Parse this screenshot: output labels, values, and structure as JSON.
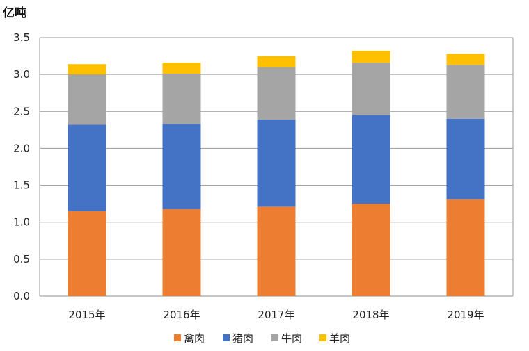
{
  "chart_data": {
    "type": "bar",
    "stacked": true,
    "title": "",
    "ylabel": "亿吨",
    "xlabel": "",
    "ylim": [
      0,
      3.5
    ],
    "yticks": [
      "0.0",
      "0.5",
      "1.0",
      "1.5",
      "2.0",
      "2.5",
      "3.0",
      "3.5"
    ],
    "grid": true,
    "legend_position": "bottom",
    "categories": [
      "2015年",
      "2016年",
      "2017年",
      "2018年",
      "2019年"
    ],
    "series": [
      {
        "name": "禽肉",
        "color": "#ED7D31",
        "values": [
          1.15,
          1.18,
          1.21,
          1.25,
          1.31
        ]
      },
      {
        "name": "猪肉",
        "color": "#4472C4",
        "values": [
          1.17,
          1.15,
          1.18,
          1.2,
          1.09
        ]
      },
      {
        "name": "牛肉",
        "color": "#A5A5A5",
        "values": [
          0.68,
          0.68,
          0.71,
          0.71,
          0.73
        ]
      },
      {
        "name": "羊肉",
        "color": "#FFC000",
        "values": [
          0.14,
          0.15,
          0.15,
          0.16,
          0.15
        ]
      }
    ]
  }
}
